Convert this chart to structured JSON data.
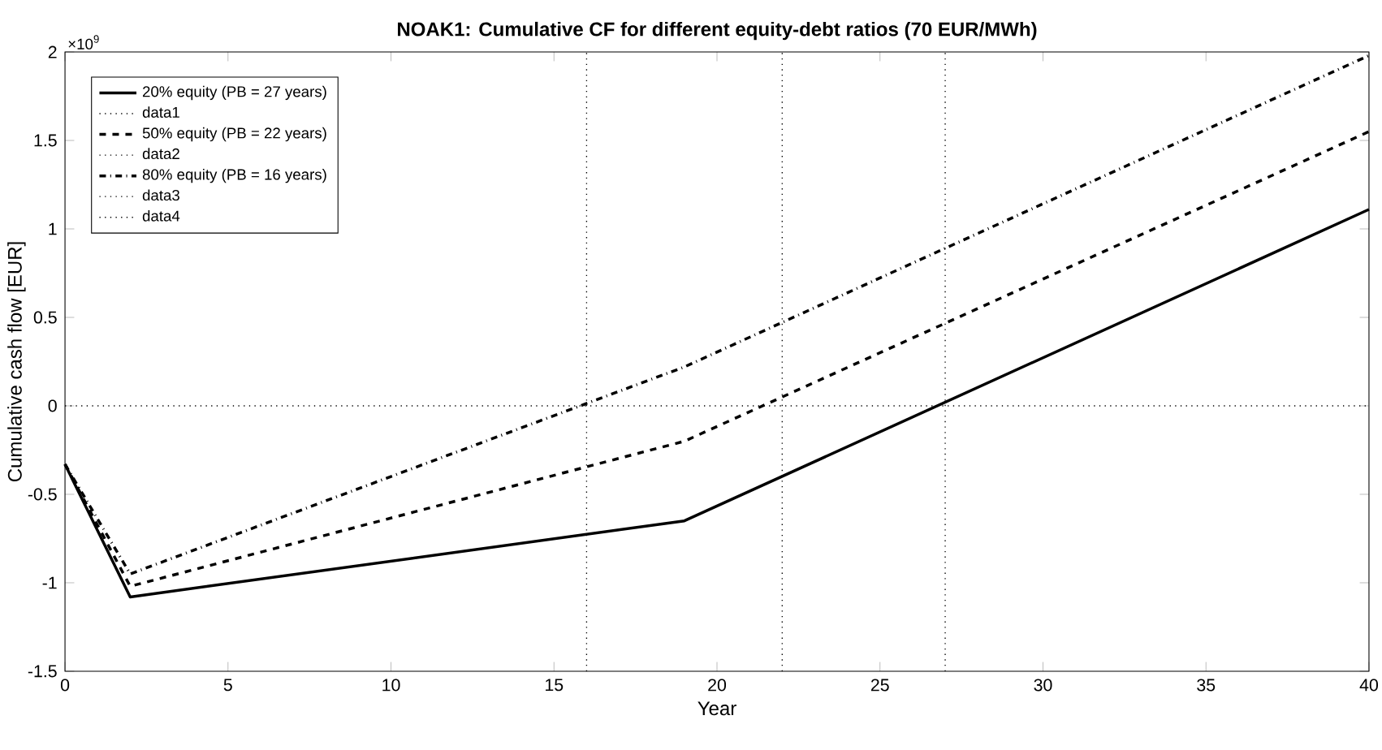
{
  "chart_data": {
    "type": "line",
    "title": "NOAK1: Cumulative CF for different equity-debt ratios (70 EUR/MWh)",
    "xlabel": "Year",
    "ylabel": "Cumulative cash flow [EUR]",
    "annotations": [
      "×10$^{9}$"
    ],
    "xlim": [
      0,
      40
    ],
    "ylim": [
      -1.5,
      2
    ],
    "xticks": [
      0,
      5,
      10,
      15,
      20,
      25,
      30,
      35,
      40
    ],
    "yticks": [
      -1.5,
      -1,
      -0.5,
      0,
      0.5,
      1,
      1.5,
      2
    ],
    "legend": "top left",
    "series": [
      {
        "name": "20% equity (PB = 27 years)",
        "color": "#000000",
        "line_style": "solid",
        "x": [
          0,
          2,
          19,
          40
        ],
        "values": [
          -0.33,
          -1.08,
          -0.65,
          1.11
        ]
      },
      {
        "name": "data1",
        "color": "#000000",
        "line_style": "dotted",
        "x": [
          27,
          27
        ],
        "values": [
          -1.5,
          2
        ]
      },
      {
        "name": "50% equity (PB = 22 years)",
        "color": "#000000",
        "line_style": "dashed",
        "x": [
          0,
          2,
          19,
          40
        ],
        "values": [
          -0.33,
          -1.02,
          -0.2,
          1.55
        ]
      },
      {
        "name": "data2",
        "color": "#000000",
        "line_style": "dotted",
        "x": [
          22,
          22
        ],
        "values": [
          -1.5,
          2
        ]
      },
      {
        "name": "80% equity (PB = 16 years)",
        "color": "#000000",
        "line_style": "dashdot",
        "x": [
          0,
          2,
          19,
          40
        ],
        "values": [
          -0.33,
          -0.95,
          0.22,
          1.98
        ]
      },
      {
        "name": "data3",
        "color": "#000000",
        "line_style": "dotted",
        "x": [
          16,
          16
        ],
        "values": [
          -1.5,
          2
        ]
      },
      {
        "name": "data4",
        "color": "#000000",
        "line_style": "dotted",
        "x": [
          0,
          40
        ],
        "values": [
          0,
          0
        ]
      }
    ]
  }
}
